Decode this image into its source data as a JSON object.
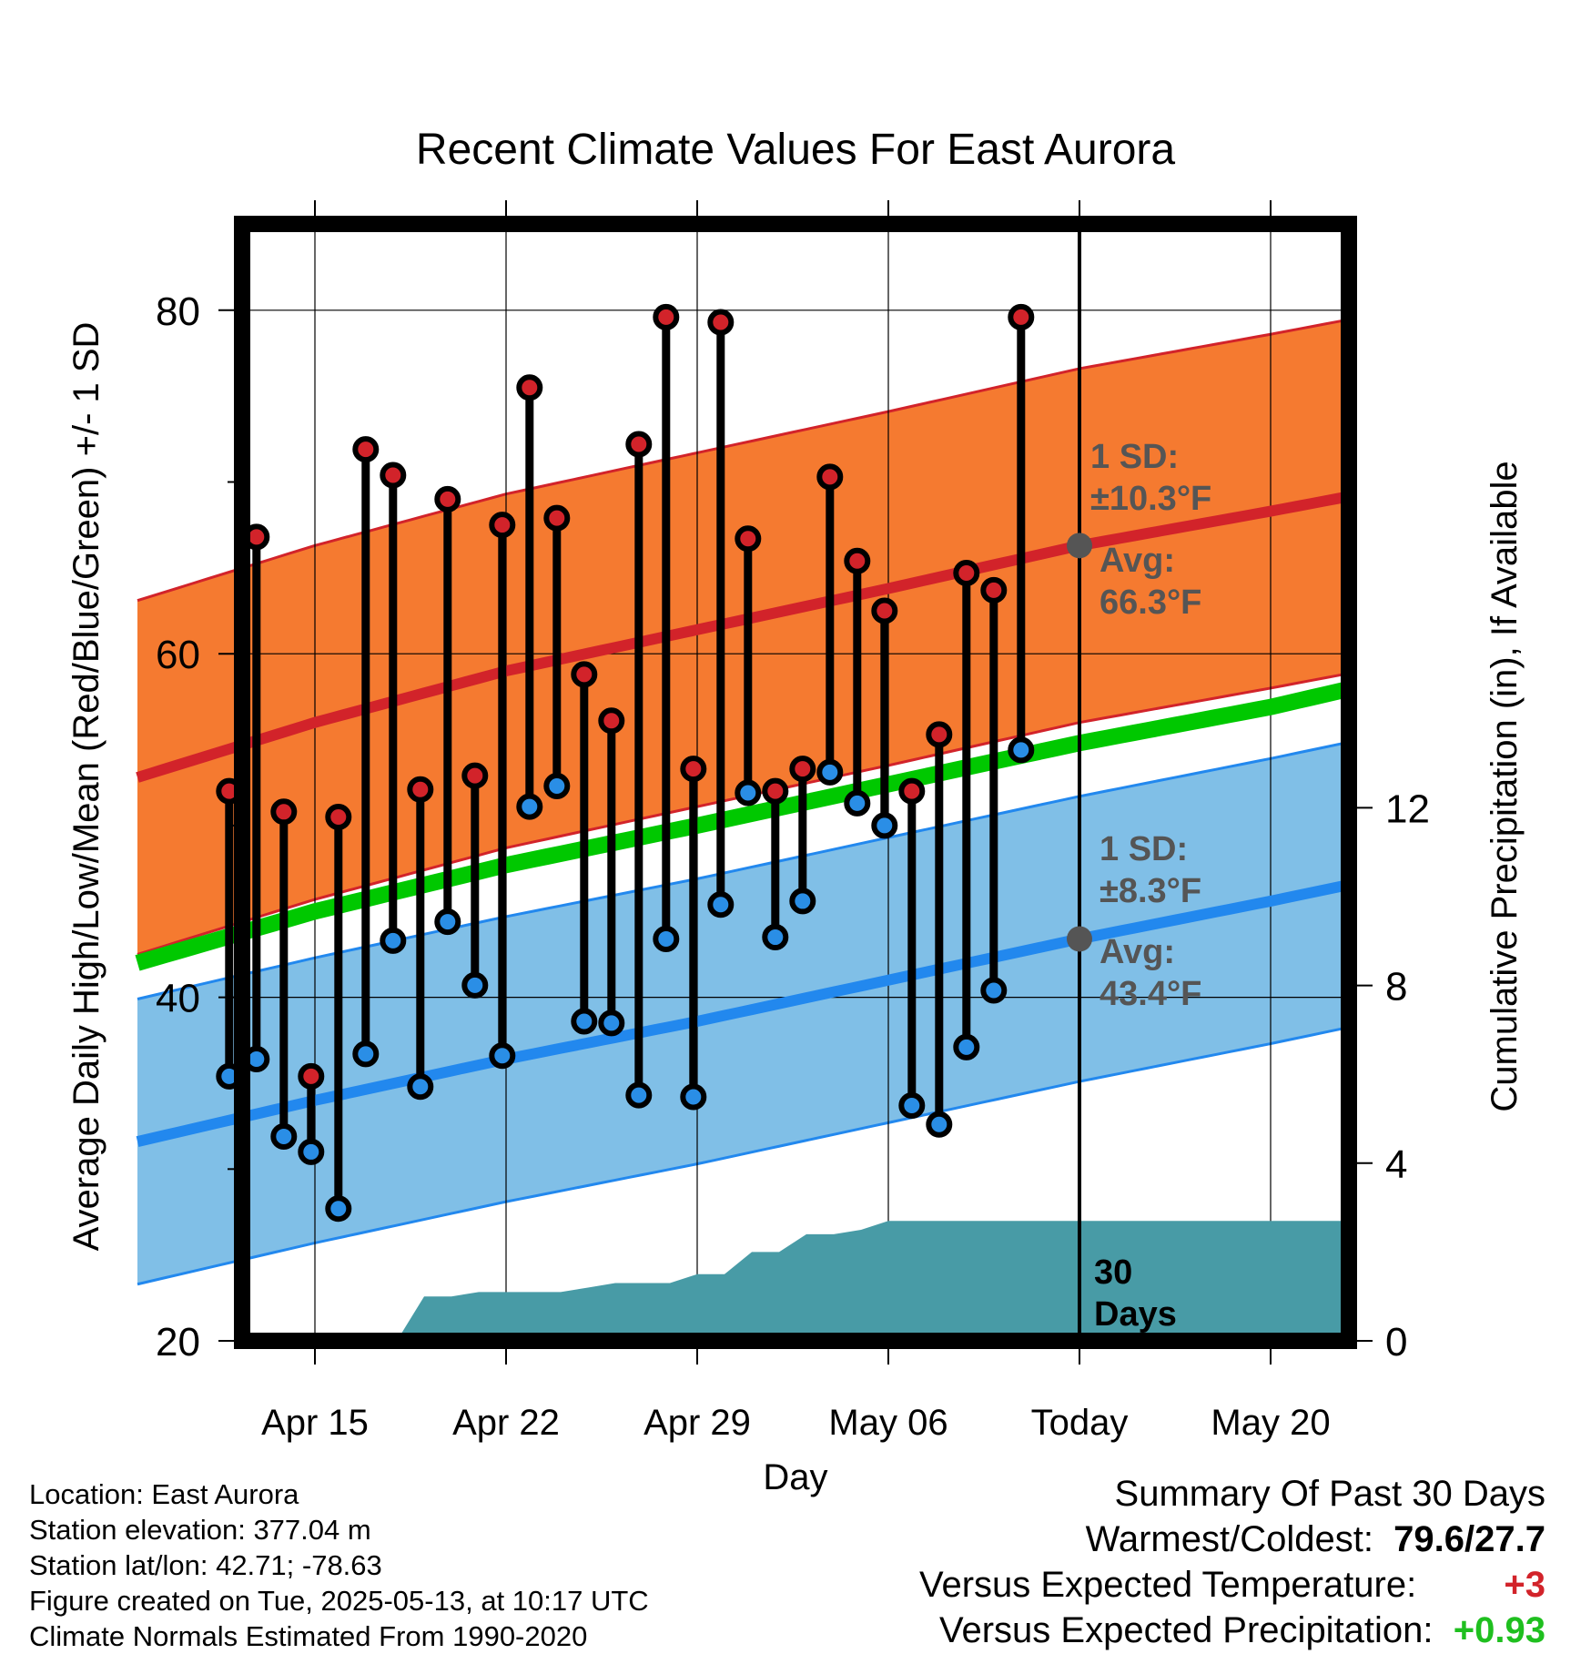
{
  "chart_data": {
    "type": "line",
    "title": "Recent Climate Values For East Aurora",
    "xlabel": "Day",
    "ylabel": "Average Daily High/Low/Mean (Red/Blue/Green) +/- 1 SD",
    "y2label": "Cumulative Precipitation (in), If Available",
    "ylim": [
      20,
      85.5
    ],
    "y2lim": [
      0,
      23.2
    ],
    "xlim_days": [
      -34.5,
      10.3
    ],
    "yticks": [
      20,
      40,
      60,
      80
    ],
    "y2ticks": [
      0,
      4,
      8,
      12
    ],
    "xtick_days": [
      -28,
      -21,
      -14,
      -7,
      0,
      7
    ],
    "xtick_labels": [
      "Apr 15",
      "Apr 22",
      "Apr 29",
      "May 06",
      "Today",
      "May 20"
    ],
    "today_label": [
      "30",
      "Days"
    ],
    "normal_high": {
      "x": [
        -34.5,
        -28,
        -21,
        -14,
        -7,
        0,
        7,
        10
      ],
      "avg": [
        52.8,
        56.0,
        59.0,
        61.4,
        63.8,
        66.3,
        68.3,
        69.2
      ],
      "sd": 10.3
    },
    "normal_low": {
      "x": [
        -34.5,
        -28,
        -21,
        -14,
        -7,
        0,
        7,
        10
      ],
      "avg": [
        31.6,
        34.0,
        36.4,
        38.6,
        41.0,
        43.4,
        45.6,
        46.6
      ],
      "sd": 8.3
    },
    "normal_mean": {
      "x": [
        -34.5,
        -28,
        -21,
        -14,
        -7,
        0,
        7,
        10
      ],
      "values": [
        42.0,
        45.0,
        47.7,
        50.0,
        52.4,
        54.8,
        56.9,
        58.0
      ]
    },
    "daily_highs": [
      52.0,
      66.8,
      50.8,
      35.4,
      50.5,
      71.9,
      70.4,
      52.1,
      69.0,
      52.9,
      67.5,
      75.5,
      67.9,
      58.8,
      56.1,
      72.2,
      79.6,
      53.3,
      79.3,
      66.7,
      52.0,
      53.3,
      70.3,
      65.4,
      62.5,
      52.0,
      55.3,
      64.7,
      63.7,
      79.6
    ],
    "daily_lows": [
      35.4,
      36.4,
      31.9,
      31.0,
      27.7,
      36.7,
      43.3,
      34.8,
      44.4,
      40.7,
      36.6,
      51.1,
      52.3,
      38.6,
      38.5,
      34.3,
      43.4,
      34.2,
      45.4,
      51.9,
      43.5,
      45.6,
      53.1,
      51.3,
      50.0,
      33.7,
      32.6,
      37.1,
      40.4,
      54.4
    ],
    "precip_cumulative": {
      "x": [
        -35,
        -25,
        -24,
        -23,
        -22,
        -21,
        -20,
        -19,
        -18,
        -17,
        -16,
        -15,
        -14,
        -13,
        -12,
        -11,
        -10,
        -9,
        -8,
        -7,
        -6,
        -5,
        -4,
        -3,
        10.3
      ],
      "values": [
        0,
        0,
        1.0,
        1.0,
        1.1,
        1.1,
        1.1,
        1.1,
        1.2,
        1.3,
        1.3,
        1.3,
        1.5,
        1.5,
        2.0,
        2.0,
        2.4,
        2.4,
        2.5,
        2.7,
        2.7,
        2.7,
        2.7,
        2.7,
        2.7
      ]
    },
    "annotations": {
      "high_sd": [
        "1 SD:",
        "±10.3°F"
      ],
      "high_avg": [
        "Avg:",
        "66.3°F"
      ],
      "low_sd": [
        "1 SD:",
        "±8.3°F"
      ],
      "low_avg": [
        "Avg:",
        "43.4°F"
      ]
    },
    "colors": {
      "high_band": "#f57a30",
      "high_line": "#d2232a",
      "low_band": "#80bfe7",
      "low_line": "#2288ee",
      "mean_line": "#00c800",
      "precip": "#489ba6",
      "high_dot": "#d2232a",
      "low_dot": "#2a8ee6",
      "annotation": "#555555"
    },
    "grid": true,
    "legend": "none"
  },
  "info": {
    "location": "Location: East Aurora",
    "elevation": "Station elevation: 377.04 m",
    "latlon": "Station lat/lon: 42.71; -78.63",
    "created": "Figure created on Tue, 2025-05-13, at 10:17 UTC",
    "normals": "Climate Normals Estimated From 1990-2020"
  },
  "summary": {
    "heading": "Summary Of Past 30 Days",
    "warm_cold_label": "Warmest/Coldest:",
    "warm_cold_value": "79.6/27.7",
    "temp_label": "Versus Expected Temperature:",
    "temp_value": "+3",
    "temp_color": "#d2232a",
    "precip_label": "Versus Expected Precipitation:",
    "precip_value": "+0.93",
    "precip_color": "#1fbf1f"
  }
}
